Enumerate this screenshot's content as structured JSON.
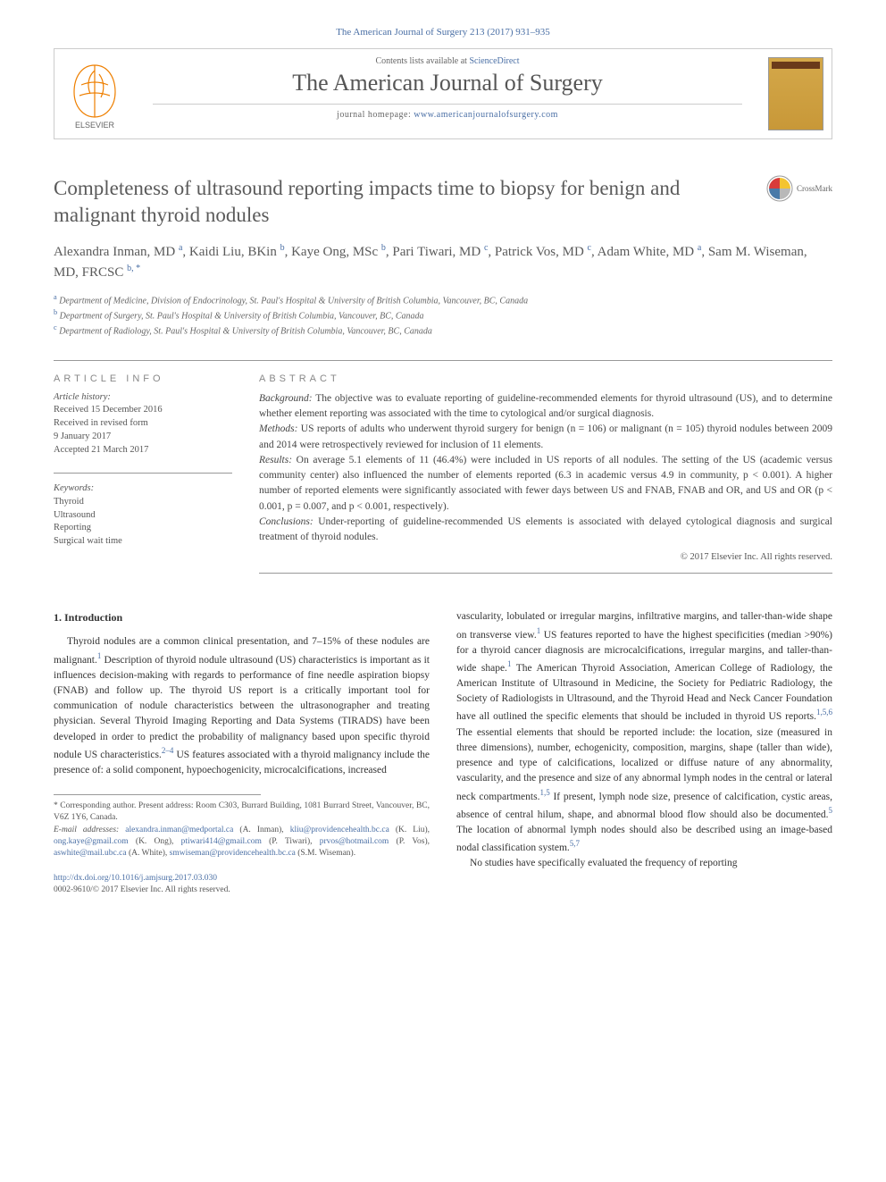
{
  "citation": "The American Journal of Surgery 213 (2017) 931–935",
  "header": {
    "contents_prefix": "Contents lists available at ",
    "contents_link": "ScienceDirect",
    "journal_name": "The American Journal of Surgery",
    "homepage_prefix": "journal homepage: ",
    "homepage_link": "www.americanjournalofsurgery.com"
  },
  "title": "Completeness of ultrasound reporting impacts time to biopsy for benign and malignant thyroid nodules",
  "crossmark_label": "CrossMark",
  "authors_html": "Alexandra Inman, MD <sup><a>a</a></sup>, Kaidi Liu, BKin <sup><a>b</a></sup>, Kaye Ong, MSc <sup><a>b</a></sup>, Pari Tiwari, MD <sup><a>c</a></sup>, Patrick Vos, MD <sup><a>c</a></sup>, Adam White, MD <sup><a>a</a></sup>, Sam M. Wiseman, MD, FRCSC <sup><a>b, *</a></sup>",
  "affiliations": [
    {
      "sup": "a",
      "text": "Department of Medicine, Division of Endocrinology, St. Paul's Hospital & University of British Columbia, Vancouver, BC, Canada"
    },
    {
      "sup": "b",
      "text": "Department of Surgery, St. Paul's Hospital & University of British Columbia, Vancouver, BC, Canada"
    },
    {
      "sup": "c",
      "text": "Department of Radiology, St. Paul's Hospital & University of British Columbia, Vancouver, BC, Canada"
    }
  ],
  "article_info": {
    "heading": "ARTICLE INFO",
    "history_label": "Article history:",
    "history": [
      "Received 15 December 2016",
      "Received in revised form",
      "9 January 2017",
      "Accepted 21 March 2017"
    ],
    "keywords_label": "Keywords:",
    "keywords": [
      "Thyroid",
      "Ultrasound",
      "Reporting",
      "Surgical wait time"
    ]
  },
  "abstract": {
    "heading": "ABSTRACT",
    "sections": [
      {
        "label": "Background:",
        "text": "The objective was to evaluate reporting of guideline-recommended elements for thyroid ultrasound (US), and to determine whether element reporting was associated with the time to cytological and/or surgical diagnosis."
      },
      {
        "label": "Methods:",
        "text": "US reports of adults who underwent thyroid surgery for benign (n = 106) or malignant (n = 105) thyroid nodules between 2009 and 2014 were retrospectively reviewed for inclusion of 11 elements."
      },
      {
        "label": "Results:",
        "text": "On average 5.1 elements of 11 (46.4%) were included in US reports of all nodules. The setting of the US (academic versus community center) also influenced the number of elements reported (6.3 in academic versus 4.9 in community, p < 0.001). A higher number of reported elements were significantly associated with fewer days between US and FNAB, FNAB and OR, and US and OR (p < 0.001, p = 0.007, and p < 0.001, respectively)."
      },
      {
        "label": "Conclusions:",
        "text": "Under-reporting of guideline-recommended US elements is associated with delayed cytological diagnosis and surgical treatment of thyroid nodules."
      }
    ],
    "copyright": "© 2017 Elsevier Inc. All rights reserved."
  },
  "body": {
    "section_heading": "1. Introduction",
    "col1_html": "Thyroid nodules are a common clinical presentation, and 7–15% of these nodules are malignant.<sup><a>1</a></sup> Description of thyroid nodule ultrasound (US) characteristics is important as it influences decision-making with regards to performance of fine needle aspiration biopsy (FNAB) and follow up. The thyroid US report is a critically important tool for communication of nodule characteristics between the ultrasonographer and treating physician. Several Thyroid Imaging Reporting and Data Systems (TIRADS) have been developed in order to predict the probability of malignancy based upon specific thyroid nodule US characteristics.<sup><a>2–4</a></sup> US features associated with a thyroid malignancy include the presence of: a solid component, hypoechogenicity, microcalcifications, increased",
    "col2_html": "vascularity, lobulated or irregular margins, infiltrative margins, and taller-than-wide shape on transverse view.<sup><a>1</a></sup> US features reported to have the highest specificities (median >90%) for a thyroid cancer diagnosis are microcalcifications, irregular margins, and taller-than-wide shape.<sup><a>1</a></sup> The American Thyroid Association, American College of Radiology, the American Institute of Ultrasound in Medicine, the Society for Pediatric Radiology, the Society of Radiologists in Ultrasound, and the Thyroid Head and Neck Cancer Foundation have all outlined the specific elements that should be included in thyroid US reports.<sup><a>1,5,6</a></sup> The essential elements that should be reported include: the location, size (measured in three dimensions), number, echogenicity, composition, margins, shape (taller than wide), presence and type of calcifications, localized or diffuse nature of any abnormality, vascularity, and the presence and size of any abnormal lymph nodes in the central or lateral neck compartments.<sup><a>1,5</a></sup> If present, lymph node size, presence of calcification, cystic areas, absence of central hilum, shape, and abnormal blood flow should also be documented.<sup><a>5</a></sup> The location of abnormal lymph nodes should also be described using an image-based nodal classification system.<sup><a>5,7</a></sup>",
    "col2_p2": "No studies have specifically evaluated the frequency of reporting"
  },
  "footnotes": {
    "corresponding": "* Corresponding author. Present address: Room C303, Burrard Building, 1081 Burrard Street, Vancouver, BC, V6Z 1Y6, Canada.",
    "email_label": "E-mail addresses:",
    "emails_html": "<a>alexandra.inman@medportal.ca</a> (A. Inman), <a>kliu@providencehealth.bc.ca</a> (K. Liu), <a>ong.kaye@gmail.com</a> (K. Ong), <a>ptiwari414@gmail.com</a> (P. Tiwari), <a>prvos@hotmail.com</a> (P. Vos), <a>aswhite@mail.ubc.ca</a> (A. White), <a>smwiseman@providencehealth.bc.ca</a> (S.M. Wiseman)."
  },
  "doi": {
    "link": "http://dx.doi.org/10.1016/j.amjsurg.2017.03.030",
    "issn_line": "0002-9610/© 2017 Elsevier Inc. All rights reserved."
  },
  "colors": {
    "link": "#4a6fa5",
    "text": "#333333",
    "muted": "#666666",
    "rule": "#999999",
    "elsevier_orange": "#ee7f00",
    "elsevier_text": "#666666",
    "cover_gold": "#d4a84a",
    "crossmark_red": "#d83b3a",
    "crossmark_yellow": "#f4c430",
    "crossmark_blue": "#4a7aa8",
    "crossmark_gray": "#b8b8b8"
  }
}
